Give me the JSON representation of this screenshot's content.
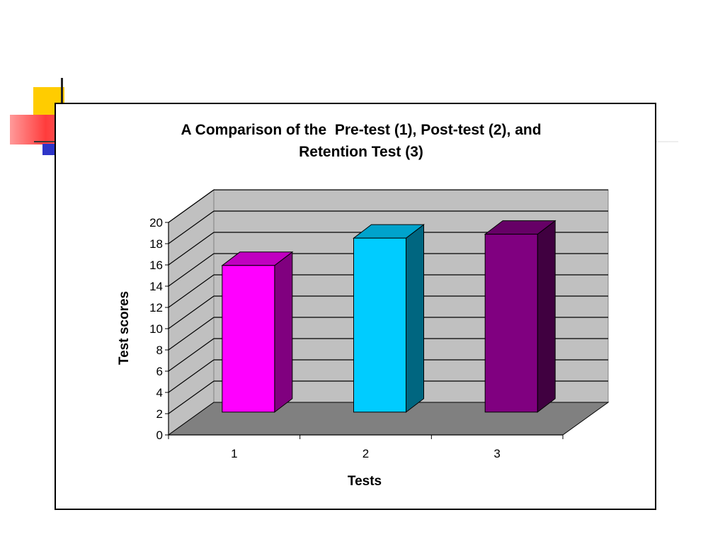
{
  "slide": {
    "accent_colors": {
      "yellow": "#ffcc00",
      "red": "#ff3c3c",
      "blue": "#2e35c8"
    }
  },
  "chart_data": {
    "type": "bar",
    "title_lines": [
      "A Comparison of the  Pre-test (1), Post-test (2), and",
      "Retention Test (3)"
    ],
    "xlabel": "Tests",
    "ylabel": "Test scores",
    "categories": [
      "1",
      "2",
      "3"
    ],
    "values": [
      15,
      17.8,
      18.2
    ],
    "bar_colors": [
      {
        "front": "#ff00ff",
        "side": "#80007f",
        "top": "#c000c0"
      },
      {
        "front": "#00ccff",
        "side": "#006680",
        "top": "#00a3cc"
      },
      {
        "front": "#800080",
        "side": "#400040",
        "top": "#660066"
      }
    ],
    "ylim": [
      0,
      20
    ],
    "yticks": [
      "0",
      "2",
      "4",
      "6",
      "8",
      "10",
      "12",
      "14",
      "16",
      "18",
      "20"
    ],
    "grid": true,
    "legend": "none",
    "style": "3d-column"
  }
}
